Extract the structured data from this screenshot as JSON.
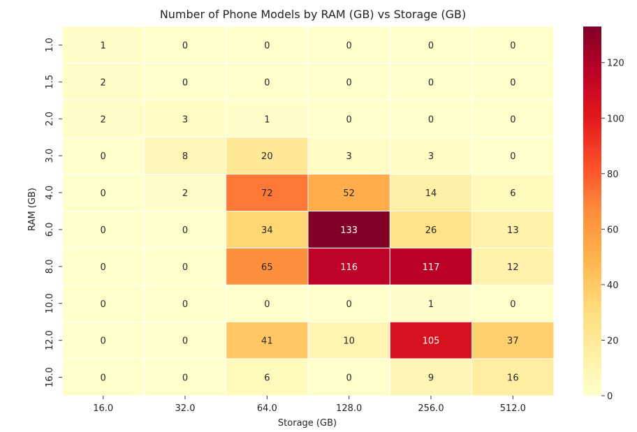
{
  "chart_data": {
    "type": "heatmap",
    "title": "Number of Phone Models by RAM (GB) vs Storage (GB)",
    "xlabel": "Storage (GB)",
    "ylabel": "RAM (GB)",
    "x_categories": [
      "16.0",
      "32.0",
      "64.0",
      "128.0",
      "256.0",
      "512.0"
    ],
    "y_categories": [
      "1.0",
      "1.5",
      "2.0",
      "3.0",
      "4.0",
      "6.0",
      "8.0",
      "10.0",
      "12.0",
      "16.0"
    ],
    "values": [
      [
        1,
        0,
        0,
        0,
        0,
        0
      ],
      [
        2,
        0,
        0,
        0,
        0,
        0
      ],
      [
        2,
        3,
        1,
        0,
        0,
        0
      ],
      [
        0,
        8,
        20,
        3,
        3,
        0
      ],
      [
        0,
        2,
        72,
        52,
        14,
        6
      ],
      [
        0,
        0,
        34,
        133,
        26,
        13
      ],
      [
        0,
        0,
        65,
        116,
        117,
        12
      ],
      [
        0,
        0,
        0,
        0,
        1,
        0
      ],
      [
        0,
        0,
        41,
        10,
        105,
        37
      ],
      [
        0,
        0,
        6,
        0,
        9,
        16
      ]
    ],
    "colorbar": {
      "min": 0,
      "max": 133,
      "ticks": [
        0,
        20,
        40,
        60,
        80,
        100,
        120
      ],
      "colormap": "YlOrRd"
    }
  }
}
